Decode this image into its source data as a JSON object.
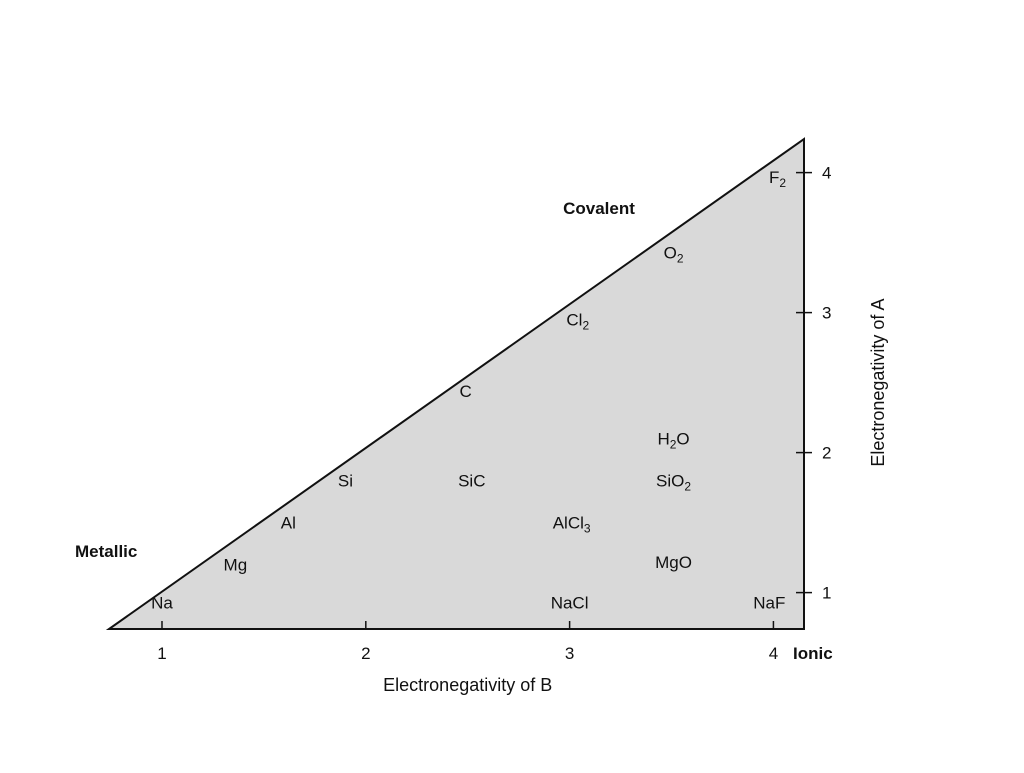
{
  "chart_data": {
    "type": "scatter",
    "xlabel": "Electronegativity of B",
    "ylabel": "Electronegativity of A",
    "xlim": [
      0.74,
      4.15
    ],
    "ylim": [
      0.74,
      4.24
    ],
    "x_ticks": [
      "1",
      "2",
      "3",
      "4"
    ],
    "y_ticks": [
      "1",
      "2",
      "3",
      "4"
    ],
    "y_axis_side": "right",
    "fill_color": "#d9d9d9",
    "line_color": "#111111",
    "regions": {
      "covalent": "Covalent",
      "metallic": "Metallic",
      "ionic": "Ionic"
    },
    "compounds": [
      {
        "id": "na",
        "label": "Na",
        "x": 1.0,
        "y": 0.93
      },
      {
        "id": "mg",
        "label": "Mg",
        "x": 1.36,
        "y": 1.2
      },
      {
        "id": "al",
        "label": "Al",
        "x": 1.62,
        "y": 1.5
      },
      {
        "id": "si",
        "label": "Si",
        "x": 1.9,
        "y": 1.8
      },
      {
        "id": "c",
        "label": "C",
        "x": 2.49,
        "y": 2.44
      },
      {
        "id": "cl2",
        "label": "Cl",
        "sub": "2",
        "x": 3.04,
        "y": 2.95
      },
      {
        "id": "o2",
        "label": "O",
        "sub": "2",
        "x": 3.51,
        "y": 3.43
      },
      {
        "id": "f2",
        "label": "F",
        "sub": "2",
        "x": 4.02,
        "y": 3.97
      },
      {
        "id": "sic",
        "label": "SiC",
        "x": 2.52,
        "y": 1.8
      },
      {
        "id": "h2o",
        "label": "H",
        "sub": "2",
        "label_after": "O",
        "x": 3.51,
        "y": 2.1
      },
      {
        "id": "sio2",
        "label": "SiO",
        "sub": "2",
        "x": 3.51,
        "y": 1.8
      },
      {
        "id": "alcl3",
        "label": "AlCl",
        "sub": "3",
        "x": 3.01,
        "y": 1.5
      },
      {
        "id": "mgo",
        "label": "MgO",
        "x": 3.51,
        "y": 1.22
      },
      {
        "id": "nacl",
        "label": "NaCl",
        "x": 3.0,
        "y": 0.93
      },
      {
        "id": "naf",
        "label": "NaF",
        "x": 3.98,
        "y": 0.93
      }
    ]
  }
}
